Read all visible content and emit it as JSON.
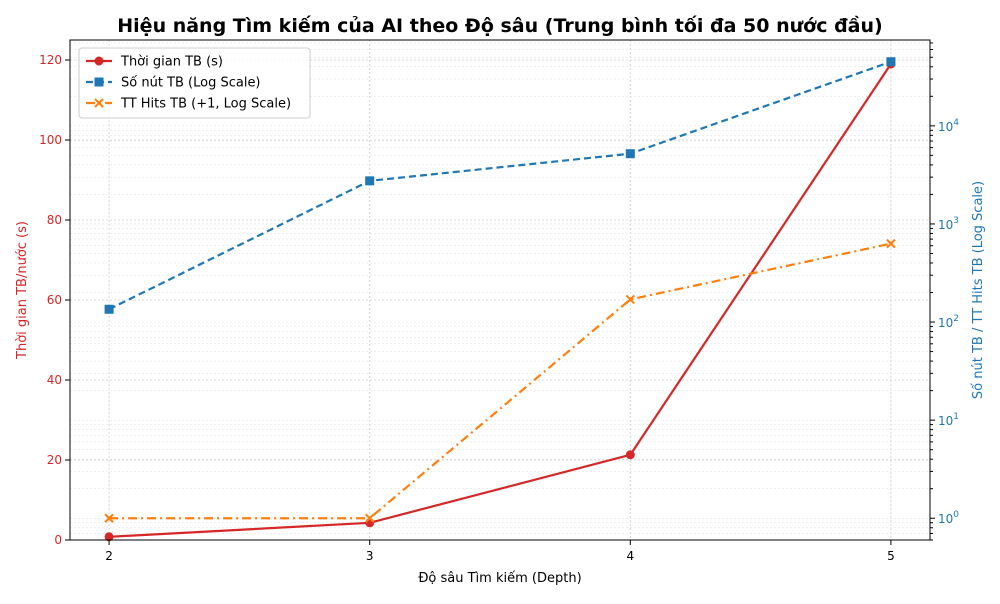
{
  "chart_data": {
    "type": "line",
    "title": "Hiệu năng Tìm kiếm của AI theo Độ sâu (Trung bình tối đa 50 nước đầu)",
    "xlabel": "Độ sâu Tìm kiếm (Depth)",
    "ylabel_left": "Thời gian TB/nước (s)",
    "ylabel_right": "Số nút TB / TT Hits TB (Log Scale)",
    "x": [
      2,
      3,
      4,
      5
    ],
    "xlim": [
      1.85,
      5.15
    ],
    "ylim_left": [
      0,
      125
    ],
    "ylim_right_log": [
      0.6,
      75000
    ],
    "left_ticks": [
      0,
      20,
      40,
      60,
      80,
      100,
      120
    ],
    "right_ticks": [
      1,
      10,
      100,
      1000,
      10000
    ],
    "grid": true,
    "legend_position": "top-left",
    "series": [
      {
        "name": "Thời gian TB (s)",
        "axis": "left",
        "values": [
          0.8,
          4.3,
          21.3,
          119.0
        ],
        "color": "#d62728",
        "marker": "circle",
        "linestyle": "solid"
      },
      {
        "name": "Số nút TB (Log Scale)",
        "axis": "right",
        "values": [
          135,
          2750,
          5200,
          45000
        ],
        "color": "#1f77b4",
        "marker": "square",
        "linestyle": "dashed"
      },
      {
        "name": "TT Hits TB (+1, Log Scale)",
        "axis": "right",
        "values": [
          1,
          1,
          170,
          630
        ],
        "color": "#ff7f0e",
        "marker": "x",
        "linestyle": "dashdot"
      }
    ],
    "colors": {
      "left_axis": "#d62728",
      "right_axis": "#1f77b4",
      "grid": "#cccccc"
    }
  }
}
